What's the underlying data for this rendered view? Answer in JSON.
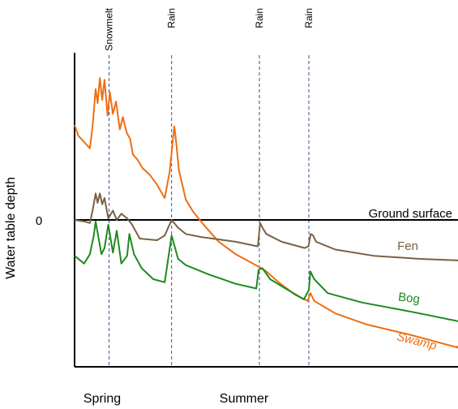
{
  "chart_data": {
    "type": "line",
    "ylabel": "Water table depth",
    "y_tick_labels": [
      "0"
    ],
    "x_category_labels": [
      "Spring",
      "Summer"
    ],
    "reference_line": {
      "label": "Ground surface",
      "y": 0
    },
    "events": [
      {
        "label": "Snowmelt",
        "x": 0.09
      },
      {
        "label": "Rain",
        "x": 0.253
      },
      {
        "label": "Rain",
        "x": 0.482
      },
      {
        "label": "Rain",
        "x": 0.611
      }
    ],
    "xlim": [
      0,
      1
    ],
    "ylim": [
      -1.0,
      1.05
    ],
    "series": [
      {
        "name": "Swamp",
        "color": "#ee6e12",
        "points": [
          [
            0,
            0.61
          ],
          [
            0.01,
            0.54
          ],
          [
            0.025,
            0.5
          ],
          [
            0.04,
            0.46
          ],
          [
            0.047,
            0.6
          ],
          [
            0.055,
            0.84
          ],
          [
            0.06,
            0.75
          ],
          [
            0.066,
            0.91
          ],
          [
            0.072,
            0.77
          ],
          [
            0.078,
            0.9
          ],
          [
            0.086,
            0.67
          ],
          [
            0.092,
            0.82
          ],
          [
            0.1,
            0.68
          ],
          [
            0.108,
            0.76
          ],
          [
            0.118,
            0.58
          ],
          [
            0.126,
            0.66
          ],
          [
            0.136,
            0.56
          ],
          [
            0.145,
            0.52
          ],
          [
            0.152,
            0.42
          ],
          [
            0.163,
            0.39
          ],
          [
            0.178,
            0.33
          ],
          [
            0.196,
            0.29
          ],
          [
            0.214,
            0.23
          ],
          [
            0.235,
            0.14
          ],
          [
            0.248,
            0.31
          ],
          [
            0.26,
            0.6
          ],
          [
            0.265,
            0.5
          ],
          [
            0.272,
            0.32
          ],
          [
            0.29,
            0.13
          ],
          [
            0.31,
            0.05
          ],
          [
            0.34,
            -0.04
          ],
          [
            0.376,
            -0.14
          ],
          [
            0.42,
            -0.22
          ],
          [
            0.48,
            -0.3
          ],
          [
            0.5,
            -0.33
          ],
          [
            0.532,
            -0.4
          ],
          [
            0.575,
            -0.48
          ],
          [
            0.608,
            -0.52
          ],
          [
            0.615,
            -0.47
          ],
          [
            0.625,
            -0.52
          ],
          [
            0.68,
            -0.6
          ],
          [
            0.76,
            -0.67
          ],
          [
            0.88,
            -0.74
          ],
          [
            1,
            -0.82
          ],
          [
            0.995,
            -0.81
          ]
        ]
      },
      {
        "name": "Fen",
        "color": "#7a6142",
        "points": [
          [
            0,
            0.0
          ],
          [
            0.025,
            -0.01
          ],
          [
            0.04,
            -0.02
          ],
          [
            0.047,
            0.06
          ],
          [
            0.055,
            0.17
          ],
          [
            0.06,
            0.11
          ],
          [
            0.066,
            0.17
          ],
          [
            0.072,
            0.1
          ],
          [
            0.078,
            0.14
          ],
          [
            0.088,
            0.01
          ],
          [
            0.1,
            0.06
          ],
          [
            0.11,
            0.0
          ],
          [
            0.122,
            0.04
          ],
          [
            0.137,
            0.01
          ],
          [
            0.15,
            -0.03
          ],
          [
            0.17,
            -0.12
          ],
          [
            0.215,
            -0.13
          ],
          [
            0.235,
            -0.1
          ],
          [
            0.253,
            0.0
          ],
          [
            0.27,
            -0.05
          ],
          [
            0.29,
            -0.09
          ],
          [
            0.33,
            -0.11
          ],
          [
            0.42,
            -0.14
          ],
          [
            0.478,
            -0.17
          ],
          [
            0.484,
            -0.02
          ],
          [
            0.49,
            -0.05
          ],
          [
            0.5,
            -0.09
          ],
          [
            0.54,
            -0.14
          ],
          [
            0.6,
            -0.18
          ],
          [
            0.61,
            -0.17
          ],
          [
            0.616,
            -0.09
          ],
          [
            0.622,
            -0.1
          ],
          [
            0.63,
            -0.14
          ],
          [
            0.68,
            -0.19
          ],
          [
            0.78,
            -0.23
          ],
          [
            0.9,
            -0.25
          ],
          [
            1,
            -0.26
          ]
        ]
      },
      {
        "name": "Bog",
        "color": "#1e8a1e",
        "points": [
          [
            0,
            -0.23
          ],
          [
            0.025,
            -0.28
          ],
          [
            0.04,
            -0.22
          ],
          [
            0.05,
            -0.1
          ],
          [
            0.055,
            -0.01
          ],
          [
            0.07,
            -0.22
          ],
          [
            0.078,
            -0.18
          ],
          [
            0.088,
            -0.03
          ],
          [
            0.1,
            -0.21
          ],
          [
            0.11,
            -0.07
          ],
          [
            0.122,
            -0.28
          ],
          [
            0.137,
            -0.23
          ],
          [
            0.143,
            -0.09
          ],
          [
            0.155,
            -0.22
          ],
          [
            0.175,
            -0.31
          ],
          [
            0.205,
            -0.38
          ],
          [
            0.235,
            -0.4
          ],
          [
            0.253,
            -0.1
          ],
          [
            0.27,
            -0.25
          ],
          [
            0.29,
            -0.29
          ],
          [
            0.35,
            -0.35
          ],
          [
            0.42,
            -0.41
          ],
          [
            0.474,
            -0.44
          ],
          [
            0.48,
            -0.32
          ],
          [
            0.49,
            -0.31
          ],
          [
            0.51,
            -0.38
          ],
          [
            0.55,
            -0.44
          ],
          [
            0.598,
            -0.51
          ],
          [
            0.611,
            -0.45
          ],
          [
            0.615,
            -0.33
          ],
          [
            0.625,
            -0.38
          ],
          [
            0.66,
            -0.47
          ],
          [
            0.75,
            -0.53
          ],
          [
            0.88,
            -0.59
          ],
          [
            1,
            -0.65
          ]
        ]
      }
    ],
    "series_label_colors": [
      "#ee6e12",
      "#7a6142",
      "#1e8a1e"
    ]
  }
}
